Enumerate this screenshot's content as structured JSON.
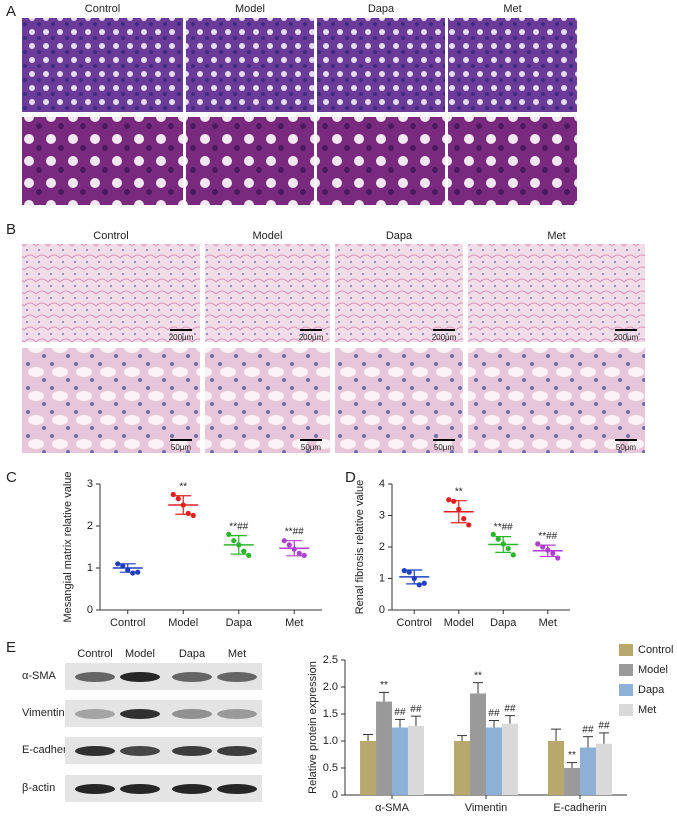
{
  "histology_he": {
    "label": "A",
    "columns": [
      "Control",
      "Model",
      "Dapa",
      "Met"
    ]
  },
  "histology_pas": {
    "label": "B",
    "columns": [
      "Control",
      "Model",
      "Dapa",
      "Met"
    ],
    "scale_bars": [
      "200μm",
      "50μm"
    ]
  },
  "western_blot": {
    "label": "E",
    "columns": [
      "Control",
      "Model",
      "Dapa",
      "Met"
    ],
    "rows": [
      "α-SMA",
      "Vimentin",
      "E-cadherin",
      "β-actin"
    ]
  },
  "chart_data": [
    {
      "type": "dot",
      "panel": "C",
      "ylabel": "Mesangial matrix relative value",
      "categories": [
        "Control",
        "Model",
        "Dapa",
        "Met"
      ],
      "colors": [
        "#1f3fbf",
        "#e02020",
        "#2bb52b",
        "#b040d0"
      ],
      "points": [
        [
          1.1,
          1.05,
          0.95,
          0.88,
          0.9
        ],
        [
          2.75,
          2.65,
          2.5,
          2.3,
          2.25
        ],
        [
          1.8,
          1.65,
          1.55,
          1.4,
          1.3
        ],
        [
          1.65,
          1.55,
          1.45,
          1.35,
          1.3
        ]
      ],
      "means": [
        1.0,
        2.5,
        1.55,
        1.47
      ],
      "errors": [
        0.1,
        0.22,
        0.22,
        0.18
      ],
      "annotations": [
        null,
        "**",
        "**##",
        "**##"
      ],
      "ylim": [
        0,
        3
      ],
      "yticks": [
        0,
        1,
        2,
        3
      ]
    },
    {
      "type": "dot",
      "panel": "D",
      "ylabel": "Renal fibrosis relative value",
      "categories": [
        "Control",
        "Model",
        "Dapa",
        "Met"
      ],
      "colors": [
        "#1f3fbf",
        "#e02020",
        "#2bb52b",
        "#b040d0"
      ],
      "points": [
        [
          1.25,
          1.2,
          1.0,
          0.8,
          0.85
        ],
        [
          3.5,
          3.45,
          3.2,
          2.9,
          2.7
        ],
        [
          2.4,
          2.25,
          2.1,
          1.95,
          1.75
        ],
        [
          2.1,
          2.0,
          1.9,
          1.8,
          1.65
        ]
      ],
      "means": [
        1.05,
        3.12,
        2.08,
        1.88
      ],
      "errors": [
        0.22,
        0.35,
        0.25,
        0.18
      ],
      "annotations": [
        null,
        "**",
        "**##",
        "**##"
      ],
      "ylim": [
        0,
        4
      ],
      "yticks": [
        0,
        1,
        2,
        3,
        4
      ]
    },
    {
      "type": "bar",
      "ylabel": "Relative protein expression",
      "categories": [
        "α-SMA",
        "Vimentin",
        "E-cadherin"
      ],
      "series": [
        {
          "name": "Control",
          "color": "#b8a86e",
          "values": [
            1.0,
            1.0,
            1.0
          ],
          "errors": [
            0.12,
            0.1,
            0.22
          ]
        },
        {
          "name": "Model",
          "color": "#9a9a9a",
          "values": [
            1.73,
            1.88,
            0.5
          ],
          "errors": [
            0.17,
            0.2,
            0.1
          ],
          "annotations": [
            "**",
            "**",
            "**"
          ]
        },
        {
          "name": "Dapa",
          "color": "#8fb0d6",
          "values": [
            1.25,
            1.25,
            0.88
          ],
          "errors": [
            0.15,
            0.13,
            0.2
          ],
          "annotations": [
            "##",
            "##",
            "##"
          ]
        },
        {
          "name": "Met",
          "color": "#d9d9d9",
          "values": [
            1.28,
            1.32,
            0.95
          ],
          "errors": [
            0.18,
            0.15,
            0.2
          ],
          "annotations": [
            "##",
            "##",
            "##"
          ]
        }
      ],
      "ylim": [
        0,
        2.5
      ],
      "yticks": [
        0,
        0.5,
        {
          "value": 1,
          "label": "1.0"
        },
        1.5,
        {
          "value": 2,
          "label": "2.0"
        },
        2.5
      ],
      "legend": "top-right"
    }
  ]
}
